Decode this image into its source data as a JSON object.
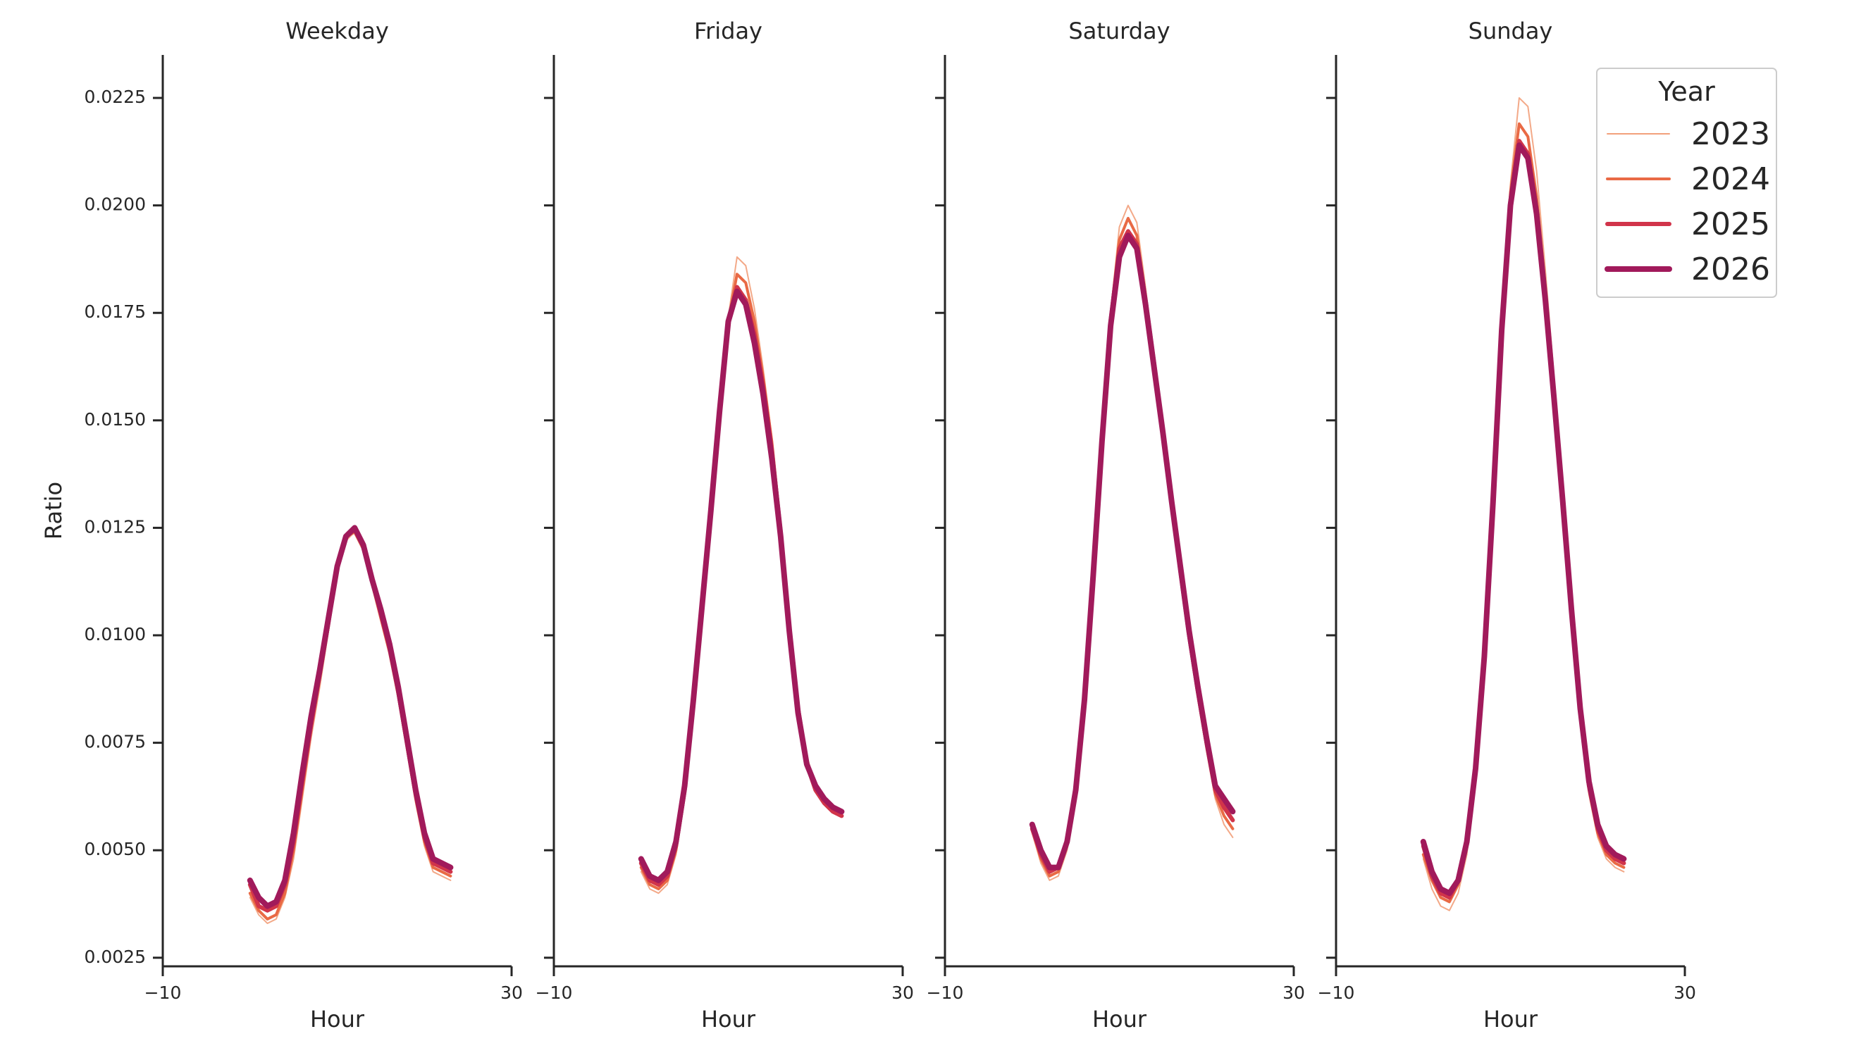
{
  "chart_data": {
    "type": "line",
    "ylabel": "Ratio",
    "xlabel": "Hour",
    "xlim": [
      -10,
      30
    ],
    "xticks": [
      -10,
      30
    ],
    "xtick_labels": [
      "−10",
      "30"
    ],
    "ylim": [
      0.0023,
      0.0235
    ],
    "yticks": [
      0.0025,
      0.005,
      0.0075,
      0.01,
      0.0125,
      0.015,
      0.0175,
      0.02,
      0.0225
    ],
    "ytick_labels": [
      "0.0025",
      "0.0050",
      "0.0075",
      "0.0100",
      "0.0125",
      "0.0150",
      "0.0175",
      "0.0200",
      "0.0225"
    ],
    "grid": false,
    "legend": {
      "title": "Year",
      "placement": "top-right",
      "entries": [
        {
          "label": "2023",
          "color": "#f2a07b",
          "width": 2
        },
        {
          "label": "2024",
          "color": "#e96a45",
          "width": 4
        },
        {
          "label": "2025",
          "color": "#d1344a",
          "width": 6
        },
        {
          "label": "2026",
          "color": "#a11a5b",
          "width": 8
        }
      ]
    },
    "panels": [
      {
        "title": "Weekday",
        "x": [
          0,
          1,
          2,
          3,
          4,
          5,
          6,
          7,
          8,
          9,
          10,
          11,
          12,
          13,
          14,
          15,
          16,
          17,
          18,
          19,
          20,
          21,
          22,
          23
        ],
        "series": [
          {
            "name": "2023",
            "values": [
              0.0039,
              0.0035,
              0.0033,
              0.0034,
              0.0039,
              0.0048,
              0.0062,
              0.0076,
              0.0088,
              0.0101,
              0.0115,
              0.0122,
              0.0124,
              0.012,
              0.0112,
              0.0104,
              0.0096,
              0.0085,
              0.0073,
              0.0061,
              0.0051,
              0.0045,
              0.0044,
              0.0043
            ]
          },
          {
            "name": "2024",
            "values": [
              0.004,
              0.0036,
              0.0034,
              0.0035,
              0.004,
              0.005,
              0.0064,
              0.0078,
              0.009,
              0.0102,
              0.0116,
              0.0123,
              0.0124,
              0.012,
              0.0112,
              0.0104,
              0.0096,
              0.0086,
              0.0074,
              0.0062,
              0.0052,
              0.0046,
              0.0045,
              0.0044
            ]
          },
          {
            "name": "2025",
            "values": [
              0.0042,
              0.0037,
              0.0036,
              0.0037,
              0.0042,
              0.0052,
              0.0066,
              0.0079,
              0.0091,
              0.0103,
              0.0116,
              0.0123,
              0.0125,
              0.0121,
              0.0113,
              0.0105,
              0.0097,
              0.0087,
              0.0075,
              0.0063,
              0.0053,
              0.0047,
              0.0046,
              0.0045
            ]
          },
          {
            "name": "2026",
            "values": [
              0.0043,
              0.0039,
              0.0037,
              0.0038,
              0.0043,
              0.0054,
              0.0068,
              0.0081,
              0.0092,
              0.0104,
              0.0116,
              0.0123,
              0.0125,
              0.0121,
              0.0113,
              0.0106,
              0.0098,
              0.0088,
              0.0076,
              0.0064,
              0.0054,
              0.0048,
              0.0047,
              0.0046
            ]
          }
        ]
      },
      {
        "title": "Friday",
        "x": [
          0,
          1,
          2,
          3,
          4,
          5,
          6,
          7,
          8,
          9,
          10,
          11,
          12,
          13,
          14,
          15,
          16,
          17,
          18,
          19,
          20,
          21,
          22,
          23
        ],
        "series": [
          {
            "name": "2023",
            "values": [
              0.0045,
              0.0041,
              0.004,
              0.0042,
              0.0049,
              0.0062,
              0.0082,
              0.0104,
              0.0127,
              0.0152,
              0.0174,
              0.0188,
              0.0186,
              0.0176,
              0.0162,
              0.0146,
              0.0126,
              0.0104,
              0.0085,
              0.0072,
              0.0065,
              0.0062,
              0.006,
              0.0059
            ]
          },
          {
            "name": "2024",
            "values": [
              0.0046,
              0.0042,
              0.0041,
              0.0043,
              0.005,
              0.0063,
              0.0083,
              0.0105,
              0.0128,
              0.0152,
              0.0173,
              0.0184,
              0.0182,
              0.0173,
              0.016,
              0.0145,
              0.0125,
              0.0103,
              0.0084,
              0.0071,
              0.0064,
              0.0061,
              0.0059,
              0.0058
            ]
          },
          {
            "name": "2025",
            "values": [
              0.0047,
              0.0043,
              0.0042,
              0.0044,
              0.0051,
              0.0064,
              0.0084,
              0.0106,
              0.0128,
              0.0152,
              0.0173,
              0.0181,
              0.0178,
              0.017,
              0.0158,
              0.0143,
              0.0124,
              0.0102,
              0.0083,
              0.007,
              0.0064,
              0.0061,
              0.0059,
              0.0058
            ]
          },
          {
            "name": "2026",
            "values": [
              0.0048,
              0.0044,
              0.0043,
              0.0045,
              0.0052,
              0.0065,
              0.0085,
              0.0107,
              0.0129,
              0.0152,
              0.0173,
              0.018,
              0.0177,
              0.0168,
              0.0156,
              0.0141,
              0.0123,
              0.0101,
              0.0082,
              0.007,
              0.0065,
              0.0062,
              0.006,
              0.0059
            ]
          }
        ]
      },
      {
        "title": "Saturday",
        "x": [
          0,
          1,
          2,
          3,
          4,
          5,
          6,
          7,
          8,
          9,
          10,
          11,
          12,
          13,
          14,
          15,
          16,
          17,
          18,
          19,
          20,
          21,
          22,
          23
        ],
        "series": [
          {
            "name": "2023",
            "values": [
              0.0054,
              0.0047,
              0.0043,
              0.0044,
              0.005,
              0.0062,
              0.0083,
              0.0112,
              0.0145,
              0.0175,
              0.0195,
              0.02,
              0.0196,
              0.0181,
              0.0164,
              0.0147,
              0.013,
              0.0114,
              0.0099,
              0.0085,
              0.0073,
              0.0062,
              0.0056,
              0.0053
            ]
          },
          {
            "name": "2024",
            "values": [
              0.0055,
              0.0048,
              0.0044,
              0.0045,
              0.0051,
              0.0063,
              0.0084,
              0.0113,
              0.0145,
              0.0174,
              0.0192,
              0.0197,
              0.0193,
              0.0179,
              0.0163,
              0.0147,
              0.013,
              0.0114,
              0.0099,
              0.0086,
              0.0074,
              0.0063,
              0.0058,
              0.0055
            ]
          },
          {
            "name": "2025",
            "values": [
              0.0055,
              0.0049,
              0.0045,
              0.0046,
              0.0052,
              0.0064,
              0.0085,
              0.0114,
              0.0145,
              0.0173,
              0.019,
              0.0194,
              0.0191,
              0.0178,
              0.0163,
              0.0147,
              0.0131,
              0.0115,
              0.01,
              0.0087,
              0.0075,
              0.0064,
              0.006,
              0.0057
            ]
          },
          {
            "name": "2026",
            "values": [
              0.0056,
              0.005,
              0.0046,
              0.0046,
              0.0052,
              0.0064,
              0.0085,
              0.0114,
              0.0145,
              0.0172,
              0.0188,
              0.0193,
              0.019,
              0.0177,
              0.0162,
              0.0147,
              0.0131,
              0.0116,
              0.0101,
              0.0088,
              0.0076,
              0.0065,
              0.0062,
              0.0059
            ]
          }
        ]
      },
      {
        "title": "Sunday",
        "x": [
          0,
          1,
          2,
          3,
          4,
          5,
          6,
          7,
          8,
          9,
          10,
          11,
          12,
          13,
          14,
          15,
          16,
          17,
          18,
          19,
          20,
          21,
          22,
          23
        ],
        "series": [
          {
            "name": "2023",
            "values": [
              0.0048,
              0.0041,
              0.0037,
              0.0036,
              0.004,
              0.0049,
              0.0066,
              0.0092,
              0.0128,
              0.017,
              0.0205,
              0.0225,
              0.0223,
              0.0208,
              0.0185,
              0.016,
              0.0133,
              0.0107,
              0.0082,
              0.0063,
              0.0053,
              0.0048,
              0.0046,
              0.0045
            ]
          },
          {
            "name": "2024",
            "values": [
              0.0049,
              0.0043,
              0.0039,
              0.0038,
              0.0042,
              0.0051,
              0.0068,
              0.0094,
              0.013,
              0.0171,
              0.0203,
              0.0219,
              0.0216,
              0.0202,
              0.0181,
              0.0157,
              0.0131,
              0.0106,
              0.0082,
              0.0064,
              0.0054,
              0.0049,
              0.0047,
              0.0046
            ]
          },
          {
            "name": "2025",
            "values": [
              0.0051,
              0.0044,
              0.004,
              0.0039,
              0.0043,
              0.0052,
              0.0069,
              0.0095,
              0.0131,
              0.0171,
              0.0201,
              0.0215,
              0.0212,
              0.0199,
              0.0179,
              0.0156,
              0.0131,
              0.0106,
              0.0083,
              0.0065,
              0.0055,
              0.005,
              0.0048,
              0.0047
            ]
          },
          {
            "name": "2026",
            "values": [
              0.0052,
              0.0045,
              0.0041,
              0.004,
              0.0043,
              0.0052,
              0.0069,
              0.0095,
              0.0131,
              0.0171,
              0.02,
              0.0214,
              0.0211,
              0.0198,
              0.0178,
              0.0155,
              0.0131,
              0.0106,
              0.0083,
              0.0066,
              0.0056,
              0.0051,
              0.0049,
              0.0048
            ]
          }
        ]
      }
    ]
  }
}
